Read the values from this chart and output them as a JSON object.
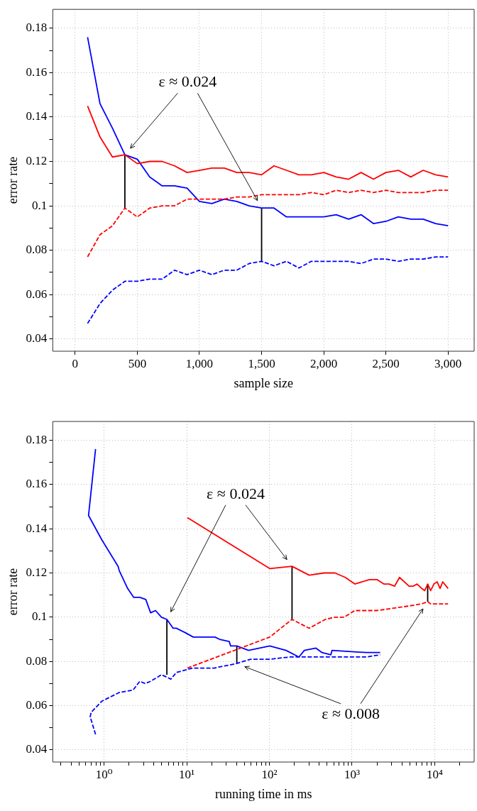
{
  "chart_data": [
    {
      "type": "line",
      "xlabel": "sample size",
      "ylabel": "error rate",
      "grid": true,
      "x": [
        100,
        200,
        300,
        400,
        500,
        600,
        700,
        800,
        900,
        1000,
        1100,
        1200,
        1300,
        1400,
        1500,
        1600,
        1700,
        1800,
        1900,
        2000,
        2100,
        2200,
        2300,
        2400,
        2500,
        2600,
        2700,
        2800,
        2900,
        3000
      ],
      "xlim": [
        -180,
        3210
      ],
      "ylim": [
        0.0345,
        0.1885
      ],
      "xticks": [
        0,
        500,
        {
          "value": 1000,
          "label": "1,000"
        },
        {
          "value": 1500,
          "label": "1,500"
        },
        {
          "value": 2000,
          "label": "2,000"
        },
        {
          "value": 2500,
          "label": "2,500"
        },
        {
          "value": 3000,
          "label": "3,000"
        }
      ],
      "yticks": [
        0.04,
        {
          "value": 0.05,
          "label": null
        },
        0.06,
        {
          "value": 0.07,
          "label": null
        },
        0.08,
        {
          "value": 0.09,
          "label": null
        },
        0.1,
        {
          "value": 0.11,
          "label": null
        },
        0.12,
        {
          "value": 0.13,
          "label": null
        },
        0.14,
        {
          "value": 0.15,
          "label": null
        },
        0.16,
        {
          "value": 0.17,
          "label": null
        },
        0.18
      ],
      "series": [
        {
          "color": "#ff0000",
          "line_style": "solid",
          "values": [
            0.145,
            0.131,
            0.122,
            0.123,
            0.119,
            0.12,
            0.12,
            0.118,
            0.115,
            0.116,
            0.117,
            0.117,
            0.115,
            0.115,
            0.114,
            0.118,
            0.116,
            0.114,
            0.114,
            0.115,
            0.113,
            0.112,
            0.115,
            0.112,
            0.115,
            0.116,
            0.113,
            0.116,
            0.114,
            0.113
          ]
        },
        {
          "color": "#ff0000",
          "line_style": "dashed",
          "values": [
            0.077,
            0.087,
            0.091,
            0.099,
            0.095,
            0.099,
            0.1,
            0.1,
            0.103,
            0.103,
            0.103,
            0.103,
            0.104,
            0.104,
            0.105,
            0.105,
            0.105,
            0.105,
            0.106,
            0.105,
            0.107,
            0.106,
            0.107,
            0.106,
            0.107,
            0.106,
            0.106,
            0.106,
            0.107,
            0.107
          ]
        },
        {
          "color": "#0000ff",
          "line_style": "solid",
          "values": [
            0.176,
            0.146,
            0.135,
            0.123,
            0.121,
            0.113,
            0.109,
            0.109,
            0.108,
            0.102,
            0.101,
            0.103,
            0.102,
            0.1,
            0.099,
            0.099,
            0.095,
            0.095,
            0.095,
            0.095,
            0.096,
            0.094,
            0.096,
            0.092,
            0.093,
            0.095,
            0.094,
            0.094,
            0.092,
            0.091
          ]
        },
        {
          "color": "#0000ff",
          "line_style": "dashed",
          "values": [
            0.047,
            0.056,
            0.062,
            0.066,
            0.066,
            0.067,
            0.067,
            0.071,
            0.069,
            0.071,
            0.069,
            0.071,
            0.071,
            0.074,
            0.075,
            0.073,
            0.075,
            0.072,
            0.075,
            0.075,
            0.075,
            0.075,
            0.074,
            0.076,
            0.076,
            0.075,
            0.076,
            0.076,
            0.077,
            0.077
          ]
        },
        {
          "color": "#000000",
          "line_style": "solid",
          "x": [
            400,
            400
          ],
          "values": [
            0.099,
            0.123
          ]
        },
        {
          "color": "#000000",
          "line_style": "solid",
          "x": [
            1500,
            1500
          ],
          "values": [
            0.075,
            0.099
          ]
        }
      ],
      "annotations": [
        "ε ≈ 0.024"
      ]
    },
    {
      "type": "line",
      "xlabel": "running time in ms",
      "ylabel": "error rate",
      "grid": true,
      "log": "x",
      "xlim": [
        0.24,
        30000
      ],
      "ylim": [
        0.0345,
        0.1885
      ],
      "xticks": [
        {
          "value": 0.3,
          "label": null
        },
        {
          "value": 0.4,
          "label": null
        },
        {
          "value": 0.5,
          "label": null
        },
        {
          "value": 0.6,
          "label": null
        },
        {
          "value": 0.7,
          "label": null
        },
        {
          "value": 0.8,
          "label": null
        },
        {
          "value": 0.9,
          "label": null
        },
        {
          "value": 1,
          "label": "10⁰"
        },
        {
          "value": 2,
          "label": null
        },
        {
          "value": 3,
          "label": null
        },
        {
          "value": 4,
          "label": null
        },
        {
          "value": 5,
          "label": null
        },
        {
          "value": 6,
          "label": null
        },
        {
          "value": 7,
          "label": null
        },
        {
          "value": 8,
          "label": null
        },
        {
          "value": 9,
          "label": null
        },
        {
          "value": 10,
          "label": "10¹"
        },
        {
          "value": 20,
          "label": null
        },
        {
          "value": 30,
          "label": null
        },
        {
          "value": 40,
          "label": null
        },
        {
          "value": 50,
          "label": null
        },
        {
          "value": 60,
          "label": null
        },
        {
          "value": 70,
          "label": null
        },
        {
          "value": 80,
          "label": null
        },
        {
          "value": 90,
          "label": null
        },
        {
          "value": 100,
          "label": "10²"
        },
        {
          "value": 200,
          "label": null
        },
        {
          "value": 300,
          "label": null
        },
        {
          "value": 400,
          "label": null
        },
        {
          "value": 500,
          "label": null
        },
        {
          "value": 600,
          "label": null
        },
        {
          "value": 700,
          "label": null
        },
        {
          "value": 800,
          "label": null
        },
        {
          "value": 900,
          "label": null
        },
        {
          "value": 1000,
          "label": "10³"
        },
        {
          "value": 2000,
          "label": null
        },
        {
          "value": 3000,
          "label": null
        },
        {
          "value": 4000,
          "label": null
        },
        {
          "value": 5000,
          "label": null
        },
        {
          "value": 6000,
          "label": null
        },
        {
          "value": 7000,
          "label": null
        },
        {
          "value": 8000,
          "label": null
        },
        {
          "value": 9000,
          "label": null
        },
        {
          "value": 10000,
          "label": "10⁴"
        },
        {
          "value": 20000,
          "label": null
        }
      ],
      "yticks": [
        0.04,
        {
          "value": 0.05,
          "label": null
        },
        0.06,
        {
          "value": 0.07,
          "label": null
        },
        0.08,
        {
          "value": 0.09,
          "label": null
        },
        0.1,
        {
          "value": 0.11,
          "label": null
        },
        0.12,
        {
          "value": 0.13,
          "label": null
        },
        0.14,
        {
          "value": 0.15,
          "label": null
        },
        0.16,
        {
          "value": 0.17,
          "label": null
        },
        0.18
      ],
      "series": [
        {
          "color": "#ff0000",
          "line_style": "solid",
          "x": [
            10.2,
            101,
            188,
            303,
            459,
            621,
            827,
            1080,
            1620,
            2000,
            2420,
            2810,
            3270,
            3750,
            4890,
            5470,
            6120,
            6960,
            7570,
            8220,
            8930,
            9780,
            10700,
            11600,
            12500,
            14500
          ],
          "values": [
            0.145,
            0.122,
            0.123,
            0.119,
            0.12,
            0.12,
            0.118,
            0.115,
            0.117,
            0.117,
            0.115,
            0.115,
            0.114,
            0.118,
            0.114,
            0.114,
            0.115,
            0.113,
            0.112,
            0.115,
            0.112,
            0.115,
            0.116,
            0.113,
            0.116,
            0.113
          ]
        },
        {
          "color": "#ff0000",
          "line_style": "dashed",
          "x": [
            10.2,
            101,
            188,
            303,
            475,
            621,
            805,
            1080,
            2000,
            4720,
            6960,
            8220,
            8930,
            14500
          ],
          "values": [
            0.077,
            0.091,
            0.099,
            0.095,
            0.099,
            0.1,
            0.1,
            0.103,
            0.103,
            0.105,
            0.106,
            0.107,
            0.106,
            0.106
          ]
        },
        {
          "color": "#0000ff",
          "line_style": "solid",
          "x": [
            0.79,
            0.65,
            0.94,
            1.48,
            1.53,
            1.93,
            2.28,
            2.71,
            3.2,
            3.66,
            4.2,
            4.95,
            5.76,
            6.86,
            7.5,
            9.6,
            12,
            22,
            25,
            32.7,
            34,
            40.4,
            56,
            101,
            159,
            228,
            265,
            366,
            433,
            555,
            572,
            1480,
            2190
          ],
          "values": [
            0.176,
            0.146,
            0.135,
            0.123,
            0.121,
            0.113,
            0.109,
            0.109,
            0.108,
            0.102,
            0.103,
            0.1,
            0.099,
            0.095,
            0.095,
            0.093,
            0.091,
            0.091,
            0.09,
            0.089,
            0.087,
            0.087,
            0.085,
            0.087,
            0.085,
            0.082,
            0.085,
            0.086,
            0.084,
            0.083,
            0.085,
            0.084,
            0.084
          ]
        },
        {
          "color": "#0000ff",
          "line_style": "dashed",
          "x": [
            0.79,
            0.68,
            0.7,
            0.94,
            1.54,
            2.24,
            2.71,
            3.15,
            3.66,
            4.95,
            6.44,
            7.5,
            11.8,
            21.6,
            39.5,
            59.6,
            101,
            178,
            1480,
            2190
          ],
          "values": [
            0.047,
            0.055,
            0.057,
            0.062,
            0.066,
            0.067,
            0.071,
            0.07,
            0.071,
            0.074,
            0.072,
            0.075,
            0.077,
            0.077,
            0.079,
            0.081,
            0.081,
            0.082,
            0.082,
            0.083
          ]
        },
        {
          "color": "#000000",
          "line_style": "solid",
          "x": [
            5.76,
            5.76
          ],
          "values": [
            0.074,
            0.099
          ]
        },
        {
          "color": "#000000",
          "line_style": "solid",
          "x": [
            188,
            188
          ],
          "values": [
            0.099,
            0.123
          ]
        },
        {
          "color": "#000000",
          "line_style": "solid",
          "x": [
            40.4,
            40.4
          ],
          "values": [
            0.079,
            0.087
          ]
        },
        {
          "color": "#000000",
          "line_style": "solid",
          "x": [
            8220,
            8220
          ],
          "values": [
            0.107,
            0.115
          ]
        }
      ],
      "annotations": [
        "ε ≈ 0.024",
        "ε ≈ 0.008"
      ]
    }
  ]
}
